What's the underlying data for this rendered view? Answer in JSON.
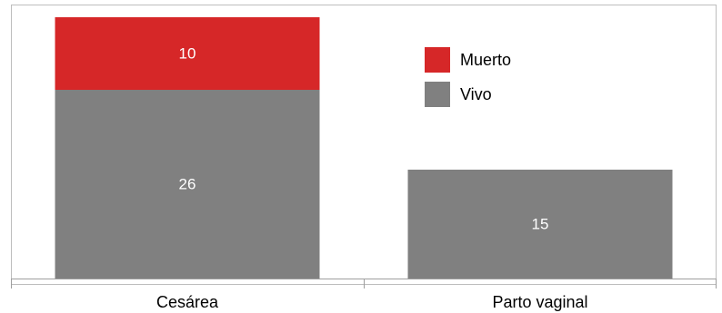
{
  "chart_data": {
    "type": "bar",
    "stacked": true,
    "categories": [
      "Cesárea",
      "Parto vaginal"
    ],
    "series": [
      {
        "name": "Vivo",
        "values": [
          26,
          15
        ],
        "color": "#808080"
      },
      {
        "name": "Muerto",
        "values": [
          10,
          0
        ],
        "color": "#d62728"
      }
    ],
    "legend": {
      "position": "top-right",
      "order": [
        "Muerto",
        "Vivo"
      ]
    },
    "ylim": [
      0,
      40
    ],
    "grid": false
  }
}
